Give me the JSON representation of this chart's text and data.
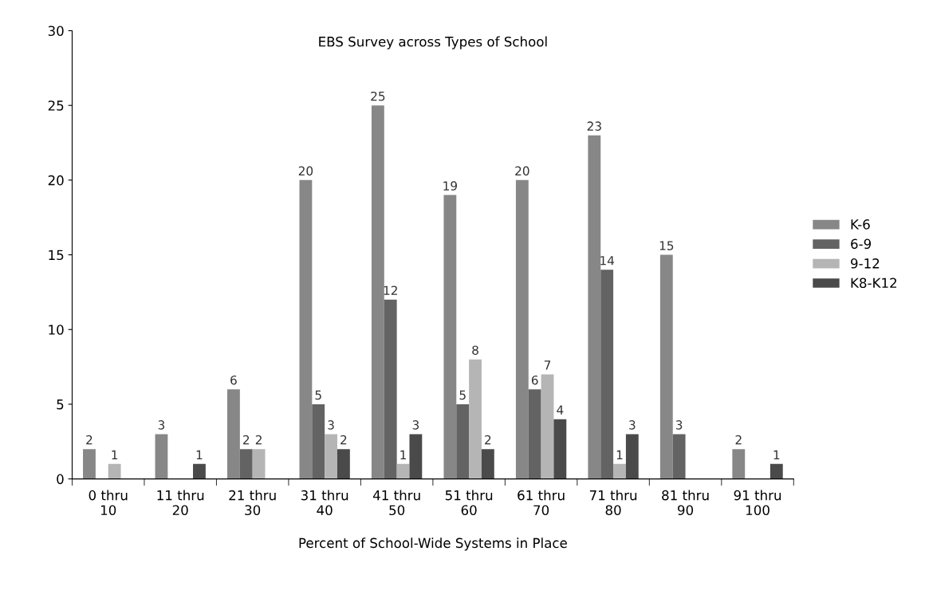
{
  "chart_data": {
    "type": "bar",
    "title": "EBS Survey across Types of School",
    "xlabel": "Percent of School-Wide Systems in Place",
    "categories": [
      "0 thru\n10",
      "11 thru\n20",
      "21 thru\n30",
      "31 thru\n40",
      "41 thru\n50",
      "51 thru\n60",
      "61 thru\n70",
      "71 thru\n80",
      "81 thru\n90",
      "91 thru\n100"
    ],
    "series": [
      {
        "name": "K-6",
        "color": "#878787",
        "values": [
          2,
          3,
          6,
          20,
          25,
          19,
          20,
          23,
          15,
          2
        ],
        "value_labels": [
          "2",
          "3",
          "6",
          "20",
          "25",
          "19",
          "20",
          "23",
          "15",
          "2"
        ]
      },
      {
        "name": "6-9",
        "color": "#636363",
        "values": [
          0,
          0,
          2,
          5,
          12,
          5,
          6,
          14,
          3,
          0
        ],
        "value_labels": [
          null,
          null,
          "2",
          "5",
          "12",
          "5",
          "6",
          "14",
          "3",
          null
        ]
      },
      {
        "name": "9-12",
        "color": "#b5b5b5",
        "values": [
          1,
          0,
          2,
          3,
          1,
          8,
          7,
          1,
          0,
          0
        ],
        "value_labels": [
          "1",
          null,
          "2",
          "3",
          "1",
          "8",
          "7",
          "1",
          null,
          null
        ]
      },
      {
        "name": "K8-K12",
        "color": "#4a4a4a",
        "values": [
          0,
          1,
          0,
          2,
          3,
          2,
          4,
          3,
          0,
          1
        ],
        "value_labels": [
          null,
          "1",
          null,
          "2",
          "3",
          "2",
          "4",
          "3",
          null,
          "1"
        ]
      }
    ],
    "ylim": [
      0,
      30
    ],
    "yticks": [
      0,
      5,
      10,
      15,
      20,
      25,
      30
    ],
    "grid": false,
    "legend": "right"
  }
}
